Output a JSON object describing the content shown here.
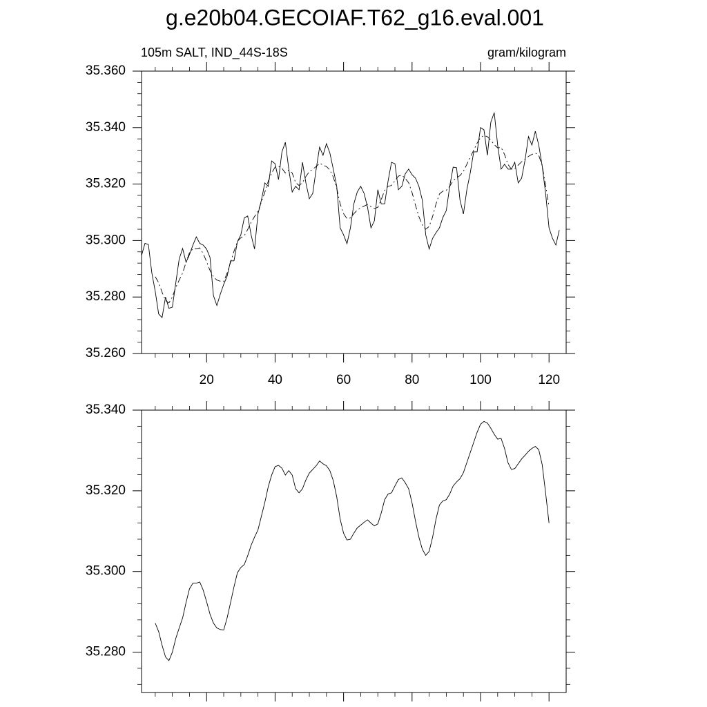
{
  "chart_data": [
    {
      "type": "line",
      "title": "g.e20b04.GECOIAF.T62_g16.eval.001",
      "subtitle_left": "105m SALT, IND_44S-18S",
      "subtitle_right": "gram/kilogram",
      "xlim": [
        1,
        125
      ],
      "xticks": [
        20,
        40,
        60,
        80,
        100,
        120
      ],
      "ylim": [
        35.26,
        35.36
      ],
      "yticks": [
        {
          "value": 35.26,
          "label": "35.260"
        },
        {
          "value": 35.28,
          "label": "35.280"
        },
        {
          "value": 35.3,
          "label": "35.300"
        },
        {
          "value": 35.32,
          "label": "35.320"
        },
        {
          "value": 35.34,
          "label": "35.340"
        },
        {
          "value": 35.36,
          "label": "35.360"
        }
      ],
      "grid": false,
      "series": [
        {
          "color": "#000000",
          "dash": false,
          "x": [
            1,
            2,
            3,
            4,
            5,
            6,
            7,
            8,
            9,
            10,
            11,
            12,
            13,
            14,
            15,
            16,
            17,
            18,
            19,
            20,
            21,
            22,
            23,
            24,
            25,
            26,
            27,
            28,
            29,
            30,
            31,
            32,
            33,
            34,
            35,
            36,
            37,
            38,
            39,
            40,
            41,
            42,
            43,
            44,
            45,
            46,
            47,
            48,
            49,
            50,
            51,
            52,
            53,
            54,
            55,
            56,
            57,
            58,
            59,
            60,
            61,
            62,
            63,
            64,
            65,
            66,
            67,
            68,
            69,
            70,
            71,
            72,
            73,
            74,
            75,
            76,
            77,
            78,
            79,
            80,
            81,
            82,
            83,
            84,
            85,
            86,
            87,
            88,
            89,
            90,
            91,
            92,
            93,
            94,
            95,
            96,
            97,
            98,
            99,
            100,
            101,
            102,
            103,
            104,
            105,
            106,
            107,
            108,
            109,
            110,
            111,
            112,
            113,
            114,
            115,
            116,
            117,
            118,
            119,
            120,
            121,
            122,
            123
          ],
          "values": [
            35.2947,
            35.299,
            35.2986,
            35.2886,
            35.282,
            35.274,
            35.2727,
            35.28,
            35.276,
            35.2764,
            35.285,
            35.2935,
            35.2972,
            35.2923,
            35.295,
            35.2984,
            35.3013,
            35.299,
            35.2984,
            35.297,
            35.294,
            35.2805,
            35.277,
            35.281,
            35.2845,
            35.2874,
            35.2928,
            35.2928,
            35.2996,
            35.302,
            35.308,
            35.3087,
            35.302,
            35.297,
            35.3094,
            35.3143,
            35.3204,
            35.3192,
            35.3282,
            35.3272,
            35.3216,
            35.3314,
            35.3348,
            35.3253,
            35.3172,
            35.3192,
            35.318,
            35.3277,
            35.3204,
            35.3148,
            35.3167,
            35.3253,
            35.3331,
            35.3302,
            35.3343,
            35.331,
            35.3253,
            35.3192,
            35.3045,
            35.302,
            35.2989,
            35.3045,
            35.313,
            35.3172,
            35.3192,
            35.3167,
            35.3118,
            35.3045,
            35.307,
            35.318,
            35.313,
            35.313,
            35.3211,
            35.3277,
            35.3272,
            35.318,
            35.3192,
            35.3236,
            35.3253,
            35.3233,
            35.3221,
            35.3192,
            35.3143,
            35.302,
            35.297,
            35.3008,
            35.3028,
            35.3045,
            35.3082,
            35.3106,
            35.3192,
            35.326,
            35.3258,
            35.3143,
            35.3094,
            35.318,
            35.324,
            35.3314,
            35.3314,
            35.34,
            35.3392,
            35.3302,
            35.3419,
            35.3453,
            35.3338,
            35.3253,
            35.327,
            35.3253,
            35.3253,
            35.3277,
            35.3204,
            35.3221,
            35.3285,
            35.3368,
            35.3338,
            35.3387,
            35.3338,
            35.3265,
            35.3167,
            35.3045,
            35.3008,
            35.2984,
            35.3037
          ]
        },
        {
          "color": "#000000",
          "dash": true,
          "x": [
            5,
            6,
            7,
            8,
            9,
            10,
            11,
            12,
            13,
            14,
            15,
            16,
            17,
            18,
            19,
            20,
            21,
            22,
            23,
            24,
            25,
            26,
            27,
            28,
            29,
            30,
            31,
            32,
            33,
            34,
            35,
            36,
            37,
            38,
            39,
            40,
            41,
            42,
            43,
            44,
            45,
            46,
            47,
            48,
            49,
            50,
            51,
            52,
            53,
            54,
            55,
            56,
            57,
            58,
            59,
            60,
            61,
            62,
            63,
            64,
            65,
            66,
            67,
            68,
            69,
            70,
            71,
            72,
            73,
            74,
            75,
            76,
            77,
            78,
            79,
            80,
            81,
            82,
            83,
            84,
            85,
            86,
            87,
            88,
            89,
            90,
            91,
            92,
            93,
            94,
            95,
            96,
            97,
            98,
            99,
            100,
            101,
            102,
            103,
            104,
            105,
            106,
            107,
            108,
            109,
            110,
            111,
            112,
            113,
            114,
            115,
            116,
            117,
            118,
            119,
            120
          ],
          "values": [
            35.2872,
            35.2851,
            35.2817,
            35.2788,
            35.2779,
            35.28,
            35.2834,
            35.286,
            35.2885,
            35.2923,
            35.2957,
            35.2971,
            35.2971,
            35.2974,
            35.2954,
            35.2925,
            35.2894,
            35.2872,
            35.286,
            35.2856,
            35.2855,
            35.2885,
            35.2923,
            35.2962,
            35.2997,
            35.301,
            35.3017,
            35.3039,
            35.3065,
            35.3085,
            35.3103,
            35.3137,
            35.3171,
            35.321,
            35.3239,
            35.326,
            35.3263,
            35.3256,
            35.3239,
            35.325,
            35.3239,
            35.3205,
            35.3195,
            35.3205,
            35.3227,
            35.3244,
            35.3253,
            35.3262,
            35.3274,
            35.3267,
            35.3262,
            35.325,
            35.3225,
            35.3185,
            35.313,
            35.3095,
            35.3078,
            35.308,
            35.3095,
            35.3108,
            35.3115,
            35.3122,
            35.3128,
            35.312,
            35.3113,
            35.3118,
            35.3145,
            35.3178,
            35.3192,
            35.3195,
            35.3212,
            35.3228,
            35.3232,
            35.322,
            35.3205,
            35.317,
            35.3125,
            35.3085,
            35.3055,
            35.304,
            35.305,
            35.3085,
            35.313,
            35.3165,
            35.3175,
            35.3178,
            35.3192,
            35.3212,
            35.3222,
            35.323,
            35.3245,
            35.327,
            35.3295,
            35.332,
            35.3345,
            35.3365,
            35.3372,
            35.3368,
            35.3355,
            35.334,
            35.3328,
            35.333,
            35.3305,
            35.327,
            35.3253,
            35.3255,
            35.3267,
            35.3279,
            35.3288,
            35.3298,
            35.3305,
            35.331,
            35.3302,
            35.3265,
            35.3195,
            35.312
          ]
        }
      ]
    },
    {
      "type": "line",
      "xlim": [
        1,
        125
      ],
      "xticks": [
        20,
        40,
        60,
        80,
        100,
        120
      ],
      "ylim": [
        35.27,
        35.34
      ],
      "yticks": [
        {
          "value": 35.28,
          "label": "35.280"
        },
        {
          "value": 35.3,
          "label": "35.300"
        },
        {
          "value": 35.32,
          "label": "35.320"
        },
        {
          "value": 35.34,
          "label": "35.340"
        }
      ],
      "grid": false,
      "series": [
        {
          "color": "#000000",
          "dash": false,
          "x": [
            5,
            6,
            7,
            8,
            9,
            10,
            11,
            12,
            13,
            14,
            15,
            16,
            17,
            18,
            19,
            20,
            21,
            22,
            23,
            24,
            25,
            26,
            27,
            28,
            29,
            30,
            31,
            32,
            33,
            34,
            35,
            36,
            37,
            38,
            39,
            40,
            41,
            42,
            43,
            44,
            45,
            46,
            47,
            48,
            49,
            50,
            51,
            52,
            53,
            54,
            55,
            56,
            57,
            58,
            59,
            60,
            61,
            62,
            63,
            64,
            65,
            66,
            67,
            68,
            69,
            70,
            71,
            72,
            73,
            74,
            75,
            76,
            77,
            78,
            79,
            80,
            81,
            82,
            83,
            84,
            85,
            86,
            87,
            88,
            89,
            90,
            91,
            92,
            93,
            94,
            95,
            96,
            97,
            98,
            99,
            100,
            101,
            102,
            103,
            104,
            105,
            106,
            107,
            108,
            109,
            110,
            111,
            112,
            113,
            114,
            115,
            116,
            117,
            118,
            119,
            120
          ],
          "values": [
            35.2872,
            35.2851,
            35.2817,
            35.2788,
            35.2779,
            35.28,
            35.2834,
            35.286,
            35.2885,
            35.2923,
            35.2957,
            35.2971,
            35.2971,
            35.2974,
            35.2954,
            35.2925,
            35.2894,
            35.2872,
            35.286,
            35.2856,
            35.2855,
            35.2885,
            35.2923,
            35.2962,
            35.2997,
            35.301,
            35.3017,
            35.3039,
            35.3065,
            35.3085,
            35.3103,
            35.3137,
            35.3171,
            35.321,
            35.3239,
            35.326,
            35.3263,
            35.3256,
            35.3239,
            35.325,
            35.3239,
            35.3205,
            35.3195,
            35.3205,
            35.3227,
            35.3244,
            35.3253,
            35.3262,
            35.3274,
            35.3267,
            35.3262,
            35.325,
            35.3225,
            35.3185,
            35.313,
            35.3095,
            35.3078,
            35.308,
            35.3095,
            35.3108,
            35.3115,
            35.3122,
            35.3128,
            35.312,
            35.3113,
            35.3118,
            35.3145,
            35.3178,
            35.3192,
            35.3195,
            35.3212,
            35.3228,
            35.3232,
            35.322,
            35.3205,
            35.317,
            35.3125,
            35.3085,
            35.3055,
            35.304,
            35.305,
            35.3085,
            35.313,
            35.3165,
            35.3175,
            35.3178,
            35.3192,
            35.3212,
            35.3222,
            35.323,
            35.3245,
            35.327,
            35.3295,
            35.332,
            35.3345,
            35.3365,
            35.3372,
            35.3368,
            35.3355,
            35.334,
            35.3328,
            35.333,
            35.3305,
            35.327,
            35.3253,
            35.3255,
            35.3267,
            35.3279,
            35.3288,
            35.3298,
            35.3305,
            35.331,
            35.3302,
            35.3265,
            35.3195,
            35.312
          ]
        }
      ]
    }
  ]
}
